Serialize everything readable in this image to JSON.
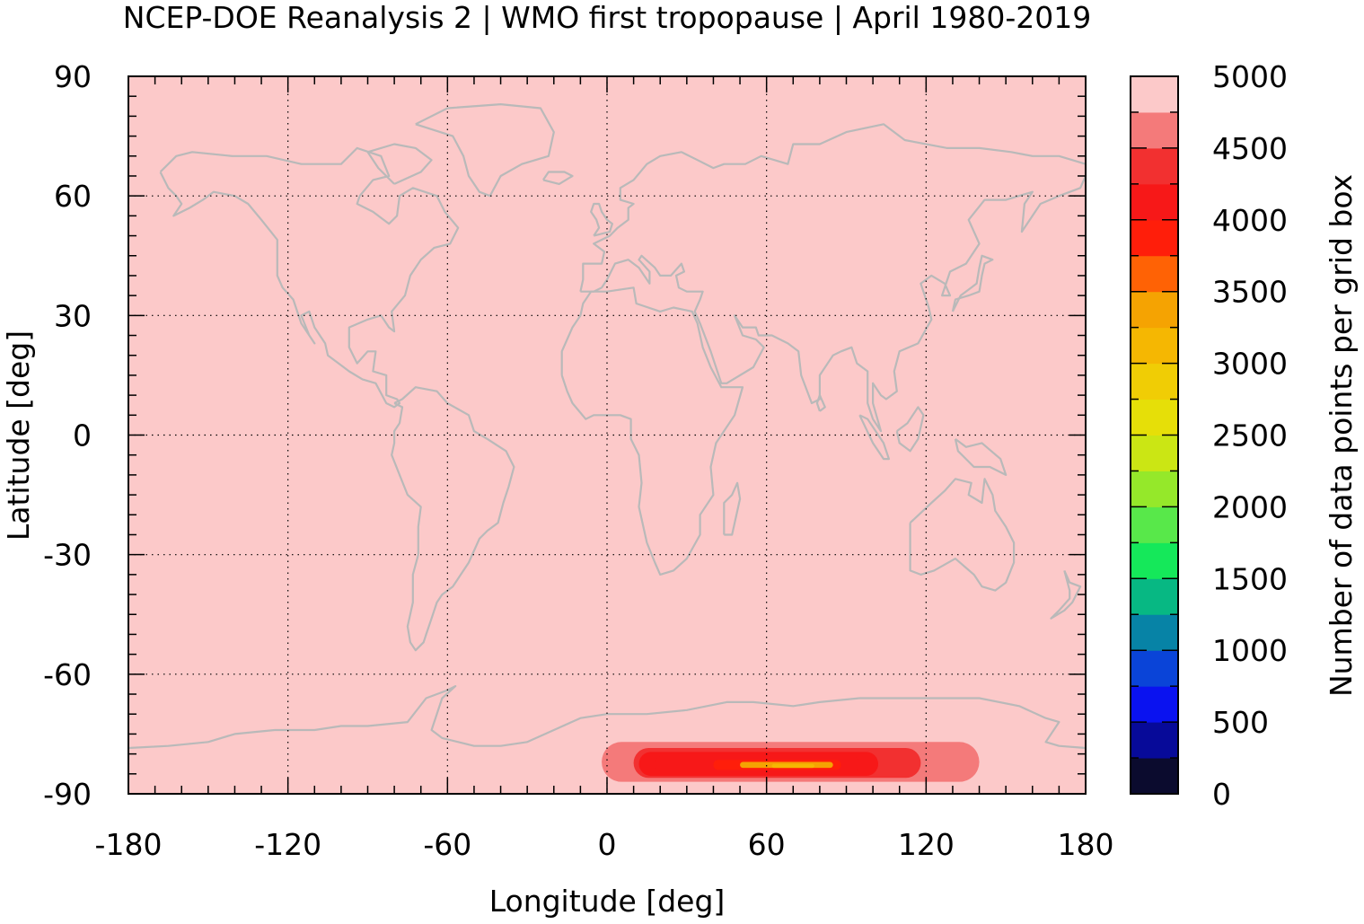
{
  "chart_data": {
    "type": "heatmap",
    "title": "NCEP-DOE Reanalysis 2 | WMO first tropopause | April 1980-2019",
    "xlabel": "Longitude [deg]",
    "ylabel": "Latitude [deg]",
    "xlim": [
      -180,
      180
    ],
    "ylim": [
      -90,
      90
    ],
    "x_ticks": [
      "-180",
      "-120",
      "-60",
      "0",
      "60",
      "120",
      "180"
    ],
    "y_ticks": [
      "-90",
      "-60",
      "-30",
      "0",
      "30",
      "60",
      "90"
    ],
    "grid": true,
    "background_value": 5000,
    "colorbar": {
      "label": "Number of data points per grid box",
      "min": 0,
      "max": 5000,
      "step": 250,
      "ticks": [
        "0",
        "500",
        "1000",
        "1500",
        "2000",
        "2500",
        "3000",
        "3500",
        "4000",
        "4500",
        "5000"
      ],
      "colors": [
        "#0b0b2e",
        "#070a99",
        "#0a12f0",
        "#0a44d8",
        "#0783a6",
        "#07b883",
        "#15e85a",
        "#58e84a",
        "#95e82a",
        "#cbe614",
        "#e6df08",
        "#f0cd05",
        "#f5b702",
        "#f5a302",
        "#ff6205",
        "#ff1e0a",
        "#f71818",
        "#f23030",
        "#f47a7a",
        "#fcc9c9"
      ]
    },
    "regions": [
      {
        "lon": [
          -2,
          140
        ],
        "lat": [
          -87,
          -77
        ],
        "value": 4600
      },
      {
        "lon": [
          10,
          118
        ],
        "lat": [
          -86,
          -78.5
        ],
        "value": 4400
      },
      {
        "lon": [
          12,
          102
        ],
        "lat": [
          -85.5,
          -79.5
        ],
        "value": 4200
      },
      {
        "lon": [
          18,
          95
        ],
        "lat": [
          -84.5,
          -80.5
        ],
        "value": 4000
      },
      {
        "lon": [
          40,
          88
        ],
        "lat": [
          -84,
          -81.5
        ],
        "value": 3750
      },
      {
        "lon": [
          50,
          85
        ],
        "lat": [
          -83.5,
          -82
        ],
        "value": 3300
      },
      {
        "lon": [
          62,
          78
        ],
        "lat": [
          -83.5,
          -82.5
        ],
        "value": 3100
      }
    ],
    "coastline": "world continents (land outlines)"
  }
}
